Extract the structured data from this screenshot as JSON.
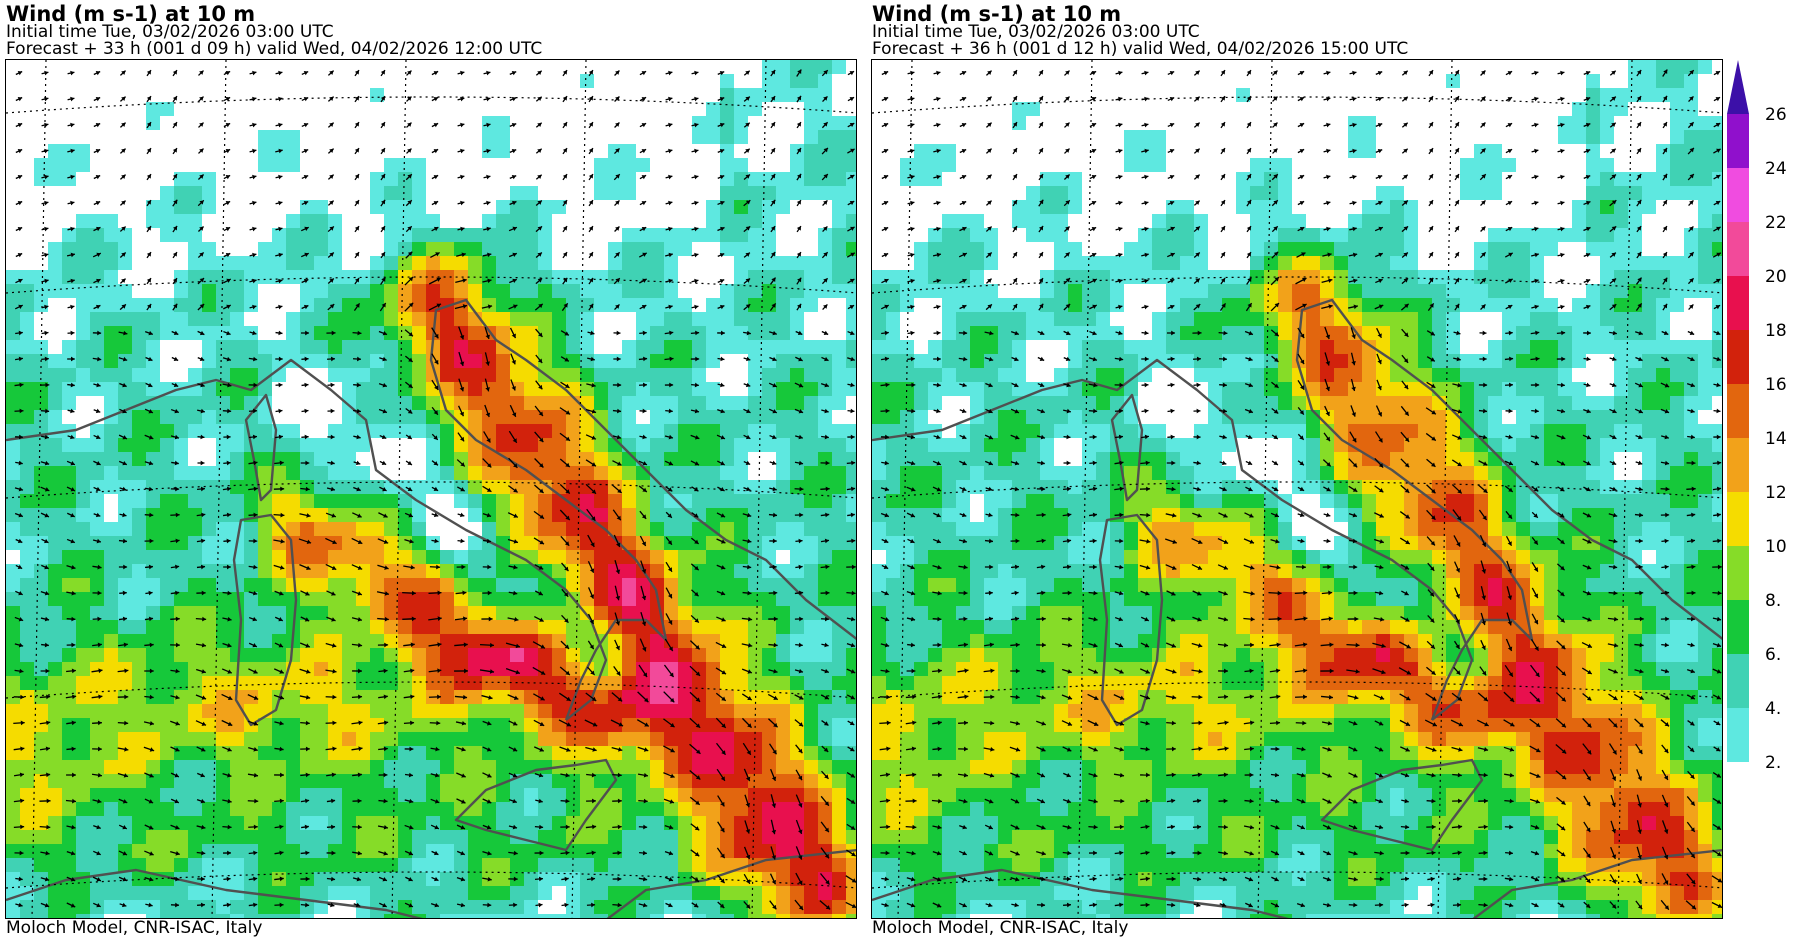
{
  "maps": [
    {
      "title": "Wind (m s-1) at 10 m",
      "initial_time": "Initial time  Tue, 03/02/2026  03:00 UTC",
      "forecast": "Forecast  +  33 h  (001 d 09 h)  valid Wed, 04/02/2026 12:00 UTC",
      "credit": "Moloch Model, CNR-ISAC, Italy",
      "jet_strength": 1.0
    },
    {
      "title": "Wind (m s-1) at 10 m",
      "initial_time": "Initial time  Tue, 03/02/2026  03:00 UTC",
      "forecast": "Forecast  +  36 h  (001 d 12 h)  valid Wed, 04/02/2026 15:00 UTC",
      "credit": "Moloch Model, CNR-ISAC, Italy",
      "jet_strength": 0.85
    }
  ],
  "colorbar": {
    "labels": [
      "2.",
      "4.",
      "6.",
      "8.",
      "10",
      "12",
      "14",
      "16",
      "18",
      "20",
      "22",
      "24",
      "26"
    ],
    "colors": [
      "#5ee8e0",
      "#40d2b4",
      "#16c83a",
      "#86dc28",
      "#f5dc00",
      "#f2a21a",
      "#e2660e",
      "#d2220c",
      "#e8104e",
      "#f24a9a",
      "#f04ce0",
      "#9010cc",
      "#3c10a8"
    ]
  },
  "style": {
    "coastline_color": "#505050",
    "arrow_color": "#000000",
    "calm_color": "#ffffff"
  }
}
